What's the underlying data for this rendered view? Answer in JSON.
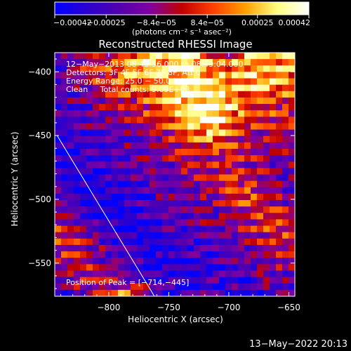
{
  "chart_data": {
    "type": "heatmap",
    "title": "Reconstructed RHESSI Image",
    "xlabel": "Heliocentric X (arcsec)",
    "ylabel": "Heliocentric Y (arcsec)",
    "xlim": [
      -845,
      -645
    ],
    "ylim": [
      -576,
      -385
    ],
    "x_ticks": [
      -800,
      -750,
      -700,
      -650
    ],
    "x_tick_labels": [
      "−800",
      "−750",
      "−700",
      "−650"
    ],
    "y_ticks": [
      -400,
      -450,
      -500,
      -550
    ],
    "y_tick_labels": [
      "−400",
      "−450",
      "−500",
      "−550"
    ],
    "colorbar": {
      "ticks": [
        -0.00042,
        -0.00025,
        -8.4e-05,
        8.4e-05,
        0.00025,
        0.00042
      ],
      "tick_labels": [
        "−0.00042",
        "−0.00025",
        "−8.4e−05",
        "8.4e−05",
        "0.00025",
        "0.00042"
      ],
      "units": "(photons cm⁻² s⁻¹ asec⁻²)",
      "range": [
        -0.00042,
        0.00042
      ],
      "colors": [
        "#0000ff",
        "#2a00d0",
        "#5000b0",
        "#8000a0",
        "#c00000",
        "#ff4000",
        "#ffa000",
        "#ffff80",
        "#ffffff"
      ]
    },
    "annotations": [
      "12−May−2013 08:43:56.000 to 08:49:04.000",
      "Detectors: 3F 4F 5F 6F 7F 8F, Att 0",
      "Energy Range: 25.0 − 50.0 keV",
      "Clean     Total counts: 9.09E+03"
    ],
    "peak_label": "Position of Peak = [−714,−445]",
    "peak": [
      -714,
      -445
    ],
    "limb_line": [
      [
        -843,
        -450
      ],
      [
        -762,
        -576
      ]
    ],
    "intensity_levels": [
      [
        0.2,
        0.3,
        0.4,
        0.5,
        0.6,
        0.7,
        0.8,
        0.7,
        0.9,
        0.8,
        0.6,
        0.6,
        0.7,
        0.8,
        0.7,
        0.7
      ],
      [
        0.3,
        0.4,
        0.5,
        0.6,
        0.7,
        0.8,
        0.9,
        0.8,
        0.9,
        0.9,
        0.7,
        0.7,
        0.8,
        0.8,
        0.8,
        0.7
      ],
      [
        0.3,
        0.3,
        0.4,
        0.5,
        0.6,
        0.6,
        0.7,
        0.8,
        0.9,
        0.9,
        0.8,
        0.7,
        0.7,
        0.8,
        0.7,
        0.6
      ],
      [
        0.2,
        0.3,
        0.3,
        0.4,
        0.5,
        0.5,
        0.6,
        0.7,
        0.8,
        0.95,
        0.9,
        0.8,
        0.6,
        0.6,
        0.6,
        0.5
      ],
      [
        0.2,
        0.2,
        0.3,
        0.3,
        0.4,
        0.4,
        0.5,
        0.6,
        0.8,
        1.0,
        0.9,
        0.7,
        0.6,
        0.5,
        0.5,
        0.5
      ],
      [
        0.1,
        0.2,
        0.2,
        0.3,
        0.3,
        0.3,
        0.4,
        0.5,
        0.6,
        0.7,
        0.8,
        0.6,
        0.5,
        0.4,
        0.5,
        0.4
      ],
      [
        0.1,
        0.1,
        0.2,
        0.2,
        0.3,
        0.3,
        0.3,
        0.4,
        0.5,
        0.5,
        0.5,
        0.6,
        0.5,
        0.4,
        0.4,
        0.4
      ],
      [
        0.1,
        0.1,
        0.1,
        0.2,
        0.2,
        0.3,
        0.3,
        0.3,
        0.4,
        0.4,
        0.5,
        0.5,
        0.4,
        0.4,
        0.3,
        0.3
      ],
      [
        0.2,
        0.1,
        0.1,
        0.1,
        0.2,
        0.2,
        0.3,
        0.3,
        0.3,
        0.4,
        0.4,
        0.6,
        0.5,
        0.4,
        0.4,
        0.3
      ],
      [
        0.3,
        0.2,
        0.1,
        0.1,
        0.1,
        0.2,
        0.2,
        0.3,
        0.3,
        0.3,
        0.4,
        0.5,
        0.6,
        0.5,
        0.4,
        0.3
      ],
      [
        0.4,
        0.3,
        0.2,
        0.1,
        0.1,
        0.1,
        0.2,
        0.2,
        0.3,
        0.3,
        0.3,
        0.4,
        0.5,
        0.6,
        0.5,
        0.4
      ],
      [
        0.5,
        0.4,
        0.3,
        0.2,
        0.1,
        0.1,
        0.1,
        0.2,
        0.2,
        0.3,
        0.3,
        0.3,
        0.4,
        0.5,
        0.6,
        0.5
      ],
      [
        0.5,
        0.5,
        0.4,
        0.3,
        0.2,
        0.1,
        0.1,
        0.1,
        0.2,
        0.2,
        0.2,
        0.3,
        0.3,
        0.4,
        0.5,
        0.5
      ],
      [
        0.4,
        0.5,
        0.4,
        0.3,
        0.3,
        0.2,
        0.1,
        0.1,
        0.1,
        0.2,
        0.2,
        0.2,
        0.3,
        0.3,
        0.4,
        0.4
      ],
      [
        0.3,
        0.4,
        0.5,
        0.4,
        0.3,
        0.2,
        0.2,
        0.1,
        0.1,
        0.1,
        0.2,
        0.2,
        0.2,
        0.3,
        0.3,
        0.3
      ],
      [
        0.2,
        0.3,
        0.4,
        0.5,
        0.6,
        0.7,
        0.3,
        0.2,
        0.1,
        0.2,
        0.2,
        0.2,
        0.2,
        0.2,
        0.3,
        0.3
      ]
    ]
  },
  "timestamp": "13−May−2022 20:13"
}
